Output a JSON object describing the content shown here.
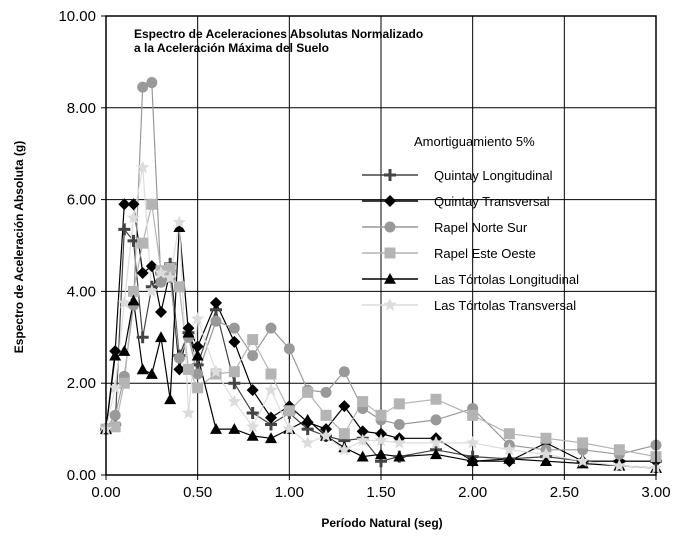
{
  "chart_data": {
    "type": "line",
    "title": [
      "Espectro de Aceleraciones Absolutas Normalizado",
      "a la Aceleración Máxima del Suelo"
    ],
    "xlabel": "Período Natural (seg)",
    "ylabel": "Espectro de Aceleración Absoluta (g)",
    "xlim": [
      0,
      3
    ],
    "ylim": [
      0,
      10
    ],
    "xticks": [
      "0.00",
      "0.50",
      "1.00",
      "1.50",
      "2.00",
      "2.50",
      "3.00"
    ],
    "yticks": [
      "0.00",
      "2.00",
      "4.00",
      "6.00",
      "8.00",
      "10.00"
    ],
    "grid": true,
    "legend_title": "Amortiguamiento 5%",
    "legend_position": "center-right",
    "series": [
      {
        "name": "Quintay Longitudinal",
        "marker": "plus",
        "color": "#444444",
        "x": [
          0,
          0.05,
          0.1,
          0.15,
          0.2,
          0.25,
          0.3,
          0.35,
          0.4,
          0.45,
          0.5,
          0.6,
          0.7,
          0.8,
          0.9,
          1.0,
          1.1,
          1.2,
          1.3,
          1.4,
          1.5,
          1.6,
          1.8,
          2.0,
          2.2,
          2.4,
          2.6,
          2.8,
          3.0
        ],
        "y": [
          1.0,
          1.1,
          5.35,
          5.1,
          3.0,
          4.1,
          4.4,
          4.6,
          2.6,
          3.1,
          2.4,
          3.6,
          2.0,
          1.35,
          1.1,
          1.35,
          1.0,
          0.85,
          0.75,
          0.8,
          0.3,
          0.4,
          0.55,
          0.4,
          0.35,
          0.4,
          0.3,
          0.3,
          0.3
        ]
      },
      {
        "name": "Quintay Transversal",
        "marker": "diamond",
        "color": "#000000",
        "x": [
          0,
          0.05,
          0.1,
          0.15,
          0.2,
          0.25,
          0.3,
          0.35,
          0.4,
          0.45,
          0.5,
          0.6,
          0.7,
          0.8,
          0.9,
          1.0,
          1.1,
          1.2,
          1.3,
          1.4,
          1.5,
          1.6,
          1.8,
          2.0,
          2.2,
          2.4,
          2.6,
          2.8,
          3.0
        ],
        "y": [
          1.0,
          2.7,
          5.9,
          5.9,
          4.4,
          4.55,
          3.55,
          4.45,
          2.3,
          3.2,
          2.8,
          3.75,
          2.9,
          1.85,
          1.25,
          1.5,
          1.15,
          1.0,
          1.5,
          0.95,
          0.9,
          0.8,
          0.8,
          0.3,
          0.3,
          0.7,
          0.3,
          0.3,
          0.3
        ]
      },
      {
        "name": "Rapel Norte Sur",
        "marker": "circle",
        "color": "#999999",
        "x": [
          0,
          0.05,
          0.1,
          0.15,
          0.2,
          0.25,
          0.3,
          0.35,
          0.4,
          0.45,
          0.5,
          0.6,
          0.7,
          0.8,
          0.9,
          1.0,
          1.1,
          1.2,
          1.3,
          1.4,
          1.5,
          1.6,
          1.8,
          2.0,
          2.2,
          2.4,
          2.6,
          2.8,
          3.0
        ],
        "y": [
          1.0,
          1.3,
          2.15,
          3.7,
          8.45,
          8.55,
          4.2,
          4.3,
          2.55,
          3.0,
          2.2,
          3.35,
          3.2,
          2.6,
          3.2,
          2.75,
          1.85,
          1.8,
          2.25,
          1.45,
          1.2,
          1.1,
          1.2,
          1.45,
          0.65,
          0.55,
          0.55,
          0.45,
          0.65
        ]
      },
      {
        "name": "Rapel Este Oeste",
        "marker": "square",
        "color": "#b4b4b4",
        "x": [
          0,
          0.05,
          0.1,
          0.15,
          0.2,
          0.25,
          0.3,
          0.35,
          0.4,
          0.45,
          0.5,
          0.6,
          0.7,
          0.8,
          0.9,
          1.0,
          1.1,
          1.2,
          1.3,
          1.4,
          1.5,
          1.6,
          1.8,
          2.0,
          2.2,
          2.4,
          2.6,
          2.8,
          3.0
        ],
        "y": [
          1.0,
          1.05,
          2.0,
          4.0,
          5.05,
          5.9,
          4.45,
          4.5,
          4.1,
          2.3,
          1.9,
          2.2,
          2.25,
          2.95,
          2.2,
          1.4,
          1.8,
          1.3,
          0.9,
          1.6,
          1.3,
          1.55,
          1.65,
          1.3,
          0.9,
          0.8,
          0.7,
          0.55,
          0.4
        ]
      },
      {
        "name": "Las Tórtolas Longitudinal",
        "marker": "triangle",
        "color": "#000000",
        "x": [
          0,
          0.05,
          0.1,
          0.15,
          0.2,
          0.25,
          0.3,
          0.35,
          0.4,
          0.45,
          0.5,
          0.6,
          0.7,
          0.8,
          0.9,
          1.0,
          1.1,
          1.2,
          1.3,
          1.4,
          1.5,
          1.6,
          1.8,
          2.0,
          2.2,
          2.4,
          2.6,
          2.8,
          3.0
        ],
        "y": [
          1.0,
          2.6,
          2.7,
          3.8,
          2.3,
          2.2,
          3.0,
          1.65,
          5.4,
          3.1,
          2.6,
          1.0,
          1.0,
          0.85,
          0.8,
          1.0,
          1.2,
          0.85,
          0.6,
          0.4,
          0.45,
          0.4,
          0.45,
          0.3,
          0.35,
          0.3,
          0.25,
          0.2,
          0.15
        ]
      },
      {
        "name": "Las Tórtolas Transversal",
        "marker": "star",
        "color": "#dcdcdc",
        "x": [
          0,
          0.05,
          0.1,
          0.15,
          0.2,
          0.25,
          0.3,
          0.35,
          0.4,
          0.45,
          0.5,
          0.6,
          0.7,
          0.8,
          0.9,
          1.0,
          1.1,
          1.2,
          1.3,
          1.4,
          1.5,
          1.6,
          1.8,
          2.0,
          2.2,
          2.4,
          2.6,
          2.8,
          3.0
        ],
        "y": [
          1.0,
          1.9,
          3.75,
          5.6,
          6.7,
          4.0,
          4.4,
          4.3,
          5.5,
          1.35,
          3.4,
          2.25,
          1.6,
          1.05,
          1.85,
          1.0,
          0.7,
          0.85,
          0.55,
          0.75,
          0.75,
          0.7,
          0.7,
          0.7,
          0.55,
          0.45,
          0.3,
          0.2,
          0.15
        ]
      }
    ]
  }
}
